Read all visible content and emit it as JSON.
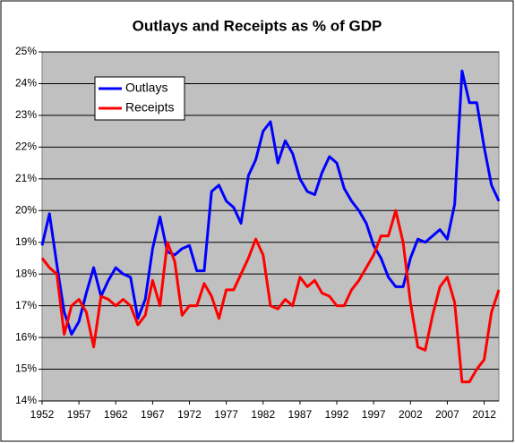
{
  "chart_data": {
    "type": "line",
    "title": "Outlays and Receipts as % of GDP",
    "x": [
      1952,
      1953,
      1954,
      1955,
      1956,
      1957,
      1958,
      1959,
      1960,
      1961,
      1962,
      1963,
      1964,
      1965,
      1966,
      1967,
      1968,
      1969,
      1970,
      1971,
      1972,
      1973,
      1974,
      1975,
      1976,
      1977,
      1978,
      1979,
      1980,
      1981,
      1982,
      1983,
      1984,
      1985,
      1986,
      1987,
      1988,
      1989,
      1990,
      1991,
      1992,
      1993,
      1994,
      1995,
      1996,
      1997,
      1998,
      1999,
      2000,
      2001,
      2002,
      2003,
      2004,
      2005,
      2006,
      2007,
      2008,
      2009,
      2010,
      2011,
      2012,
      2013,
      2014
    ],
    "series": [
      {
        "name": "Outlays",
        "color": "#0000ff",
        "values": [
          18.9,
          19.9,
          18.3,
          16.8,
          16.1,
          16.5,
          17.4,
          18.2,
          17.3,
          17.8,
          18.2,
          18.0,
          17.9,
          16.6,
          17.2,
          18.8,
          19.8,
          18.7,
          18.6,
          18.8,
          18.9,
          18.1,
          18.1,
          20.6,
          20.8,
          20.3,
          20.1,
          19.6,
          21.1,
          21.6,
          22.5,
          22.8,
          21.5,
          22.2,
          21.8,
          21.0,
          20.6,
          20.5,
          21.2,
          21.7,
          21.5,
          20.7,
          20.3,
          20.0,
          19.6,
          18.9,
          18.5,
          17.9,
          17.6,
          17.6,
          18.5,
          19.1,
          19.0,
          19.2,
          19.4,
          19.1,
          20.2,
          24.4,
          23.4,
          23.4,
          22.0,
          20.8,
          20.3
        ]
      },
      {
        "name": "Receipts",
        "color": "#ff0000",
        "values": [
          18.5,
          18.2,
          18.0,
          16.1,
          17.0,
          17.2,
          16.8,
          15.7,
          17.3,
          17.2,
          17.0,
          17.2,
          17.0,
          16.4,
          16.7,
          17.8,
          17.0,
          19.0,
          18.4,
          16.7,
          17.0,
          17.0,
          17.7,
          17.3,
          16.6,
          17.5,
          17.5,
          18.0,
          18.5,
          19.1,
          18.6,
          17.0,
          16.9,
          17.2,
          17.0,
          17.9,
          17.6,
          17.8,
          17.4,
          17.3,
          17.0,
          17.0,
          17.5,
          17.8,
          18.2,
          18.6,
          19.2,
          19.2,
          20.0,
          19.0,
          17.1,
          15.7,
          15.6,
          16.7,
          17.6,
          17.9,
          17.1,
          14.6,
          14.6,
          15.0,
          15.3,
          16.8,
          17.5
        ]
      }
    ],
    "xlim": [
      1952,
      2014
    ],
    "xticks": [
      1952,
      1957,
      1962,
      1967,
      1972,
      1977,
      1982,
      1987,
      1992,
      1997,
      2002,
      2007,
      2012
    ],
    "ylim": [
      14,
      25
    ],
    "yticks": [
      {
        "value": 14,
        "label": "14%"
      },
      {
        "value": 15,
        "label": "15%"
      },
      {
        "value": 16,
        "label": "16%"
      },
      {
        "value": 17,
        "label": "17%"
      },
      {
        "value": 18,
        "label": "18%"
      },
      {
        "value": 19,
        "label": "19%"
      },
      {
        "value": 20,
        "label": "20%"
      },
      {
        "value": 21,
        "label": "21%"
      },
      {
        "value": 22,
        "label": "22%"
      },
      {
        "value": 23,
        "label": "23%"
      },
      {
        "value": 24,
        "label": "24%"
      },
      {
        "value": 25,
        "label": "25%"
      }
    ],
    "grid": true,
    "legend": "upper left"
  }
}
